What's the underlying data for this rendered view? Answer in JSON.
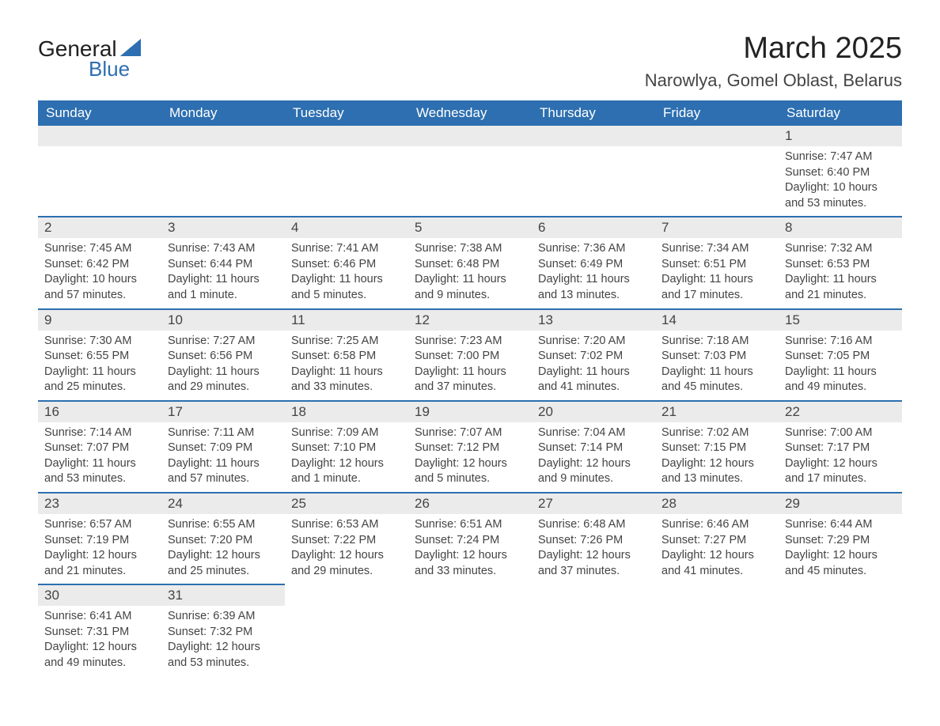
{
  "brand": {
    "word1": "General",
    "word2": "Blue",
    "sail_color": "#2d6fb0"
  },
  "title": "March 2025",
  "location": "Narowlya, Gomel Oblast, Belarus",
  "headers": [
    "Sunday",
    "Monday",
    "Tuesday",
    "Wednesday",
    "Thursday",
    "Friday",
    "Saturday"
  ],
  "colors": {
    "header_bg": "#2d6fb0",
    "header_text": "#ffffff",
    "cell_divider": "#2d6fb0",
    "daynum_bg": "#ebebeb",
    "text": "#444444",
    "background": "#ffffff"
  },
  "weeks": [
    [
      null,
      null,
      null,
      null,
      null,
      null,
      {
        "day": "1",
        "sunrise": "Sunrise: 7:47 AM",
        "sunset": "Sunset: 6:40 PM",
        "dl1": "Daylight: 10 hours",
        "dl2": "and 53 minutes."
      }
    ],
    [
      {
        "day": "2",
        "sunrise": "Sunrise: 7:45 AM",
        "sunset": "Sunset: 6:42 PM",
        "dl1": "Daylight: 10 hours",
        "dl2": "and 57 minutes."
      },
      {
        "day": "3",
        "sunrise": "Sunrise: 7:43 AM",
        "sunset": "Sunset: 6:44 PM",
        "dl1": "Daylight: 11 hours",
        "dl2": "and 1 minute."
      },
      {
        "day": "4",
        "sunrise": "Sunrise: 7:41 AM",
        "sunset": "Sunset: 6:46 PM",
        "dl1": "Daylight: 11 hours",
        "dl2": "and 5 minutes."
      },
      {
        "day": "5",
        "sunrise": "Sunrise: 7:38 AM",
        "sunset": "Sunset: 6:48 PM",
        "dl1": "Daylight: 11 hours",
        "dl2": "and 9 minutes."
      },
      {
        "day": "6",
        "sunrise": "Sunrise: 7:36 AM",
        "sunset": "Sunset: 6:49 PM",
        "dl1": "Daylight: 11 hours",
        "dl2": "and 13 minutes."
      },
      {
        "day": "7",
        "sunrise": "Sunrise: 7:34 AM",
        "sunset": "Sunset: 6:51 PM",
        "dl1": "Daylight: 11 hours",
        "dl2": "and 17 minutes."
      },
      {
        "day": "8",
        "sunrise": "Sunrise: 7:32 AM",
        "sunset": "Sunset: 6:53 PM",
        "dl1": "Daylight: 11 hours",
        "dl2": "and 21 minutes."
      }
    ],
    [
      {
        "day": "9",
        "sunrise": "Sunrise: 7:30 AM",
        "sunset": "Sunset: 6:55 PM",
        "dl1": "Daylight: 11 hours",
        "dl2": "and 25 minutes."
      },
      {
        "day": "10",
        "sunrise": "Sunrise: 7:27 AM",
        "sunset": "Sunset: 6:56 PM",
        "dl1": "Daylight: 11 hours",
        "dl2": "and 29 minutes."
      },
      {
        "day": "11",
        "sunrise": "Sunrise: 7:25 AM",
        "sunset": "Sunset: 6:58 PM",
        "dl1": "Daylight: 11 hours",
        "dl2": "and 33 minutes."
      },
      {
        "day": "12",
        "sunrise": "Sunrise: 7:23 AM",
        "sunset": "Sunset: 7:00 PM",
        "dl1": "Daylight: 11 hours",
        "dl2": "and 37 minutes."
      },
      {
        "day": "13",
        "sunrise": "Sunrise: 7:20 AM",
        "sunset": "Sunset: 7:02 PM",
        "dl1": "Daylight: 11 hours",
        "dl2": "and 41 minutes."
      },
      {
        "day": "14",
        "sunrise": "Sunrise: 7:18 AM",
        "sunset": "Sunset: 7:03 PM",
        "dl1": "Daylight: 11 hours",
        "dl2": "and 45 minutes."
      },
      {
        "day": "15",
        "sunrise": "Sunrise: 7:16 AM",
        "sunset": "Sunset: 7:05 PM",
        "dl1": "Daylight: 11 hours",
        "dl2": "and 49 minutes."
      }
    ],
    [
      {
        "day": "16",
        "sunrise": "Sunrise: 7:14 AM",
        "sunset": "Sunset: 7:07 PM",
        "dl1": "Daylight: 11 hours",
        "dl2": "and 53 minutes."
      },
      {
        "day": "17",
        "sunrise": "Sunrise: 7:11 AM",
        "sunset": "Sunset: 7:09 PM",
        "dl1": "Daylight: 11 hours",
        "dl2": "and 57 minutes."
      },
      {
        "day": "18",
        "sunrise": "Sunrise: 7:09 AM",
        "sunset": "Sunset: 7:10 PM",
        "dl1": "Daylight: 12 hours",
        "dl2": "and 1 minute."
      },
      {
        "day": "19",
        "sunrise": "Sunrise: 7:07 AM",
        "sunset": "Sunset: 7:12 PM",
        "dl1": "Daylight: 12 hours",
        "dl2": "and 5 minutes."
      },
      {
        "day": "20",
        "sunrise": "Sunrise: 7:04 AM",
        "sunset": "Sunset: 7:14 PM",
        "dl1": "Daylight: 12 hours",
        "dl2": "and 9 minutes."
      },
      {
        "day": "21",
        "sunrise": "Sunrise: 7:02 AM",
        "sunset": "Sunset: 7:15 PM",
        "dl1": "Daylight: 12 hours",
        "dl2": "and 13 minutes."
      },
      {
        "day": "22",
        "sunrise": "Sunrise: 7:00 AM",
        "sunset": "Sunset: 7:17 PM",
        "dl1": "Daylight: 12 hours",
        "dl2": "and 17 minutes."
      }
    ],
    [
      {
        "day": "23",
        "sunrise": "Sunrise: 6:57 AM",
        "sunset": "Sunset: 7:19 PM",
        "dl1": "Daylight: 12 hours",
        "dl2": "and 21 minutes."
      },
      {
        "day": "24",
        "sunrise": "Sunrise: 6:55 AM",
        "sunset": "Sunset: 7:20 PM",
        "dl1": "Daylight: 12 hours",
        "dl2": "and 25 minutes."
      },
      {
        "day": "25",
        "sunrise": "Sunrise: 6:53 AM",
        "sunset": "Sunset: 7:22 PM",
        "dl1": "Daylight: 12 hours",
        "dl2": "and 29 minutes."
      },
      {
        "day": "26",
        "sunrise": "Sunrise: 6:51 AM",
        "sunset": "Sunset: 7:24 PM",
        "dl1": "Daylight: 12 hours",
        "dl2": "and 33 minutes."
      },
      {
        "day": "27",
        "sunrise": "Sunrise: 6:48 AM",
        "sunset": "Sunset: 7:26 PM",
        "dl1": "Daylight: 12 hours",
        "dl2": "and 37 minutes."
      },
      {
        "day": "28",
        "sunrise": "Sunrise: 6:46 AM",
        "sunset": "Sunset: 7:27 PM",
        "dl1": "Daylight: 12 hours",
        "dl2": "and 41 minutes."
      },
      {
        "day": "29",
        "sunrise": "Sunrise: 6:44 AM",
        "sunset": "Sunset: 7:29 PM",
        "dl1": "Daylight: 12 hours",
        "dl2": "and 45 minutes."
      }
    ],
    [
      {
        "day": "30",
        "sunrise": "Sunrise: 6:41 AM",
        "sunset": "Sunset: 7:31 PM",
        "dl1": "Daylight: 12 hours",
        "dl2": "and 49 minutes."
      },
      {
        "day": "31",
        "sunrise": "Sunrise: 6:39 AM",
        "sunset": "Sunset: 7:32 PM",
        "dl1": "Daylight: 12 hours",
        "dl2": "and 53 minutes."
      },
      null,
      null,
      null,
      null,
      null
    ]
  ]
}
